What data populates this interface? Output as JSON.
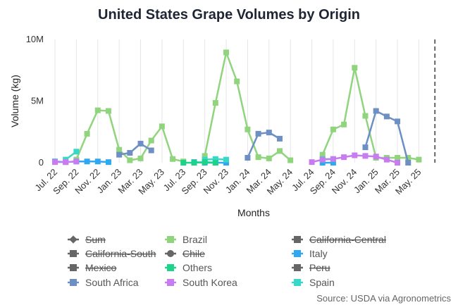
{
  "chart_data": {
    "type": "line",
    "title": "United States Grape Volumes by Origin",
    "xlabel": "Months",
    "ylabel": "Volume (kg)",
    "ylim": [
      0,
      10000000
    ],
    "y_ticks": [
      {
        "value": 0,
        "label": "0"
      },
      {
        "value": 5000000,
        "label": "5M"
      },
      {
        "value": 10000000,
        "label": "10M"
      }
    ],
    "x_range": [
      0,
      37
    ],
    "x_ticks": [
      {
        "x": 0,
        "label": "Jul. 22"
      },
      {
        "x": 2,
        "label": "Sep. 22"
      },
      {
        "x": 4,
        "label": "Nov. 22"
      },
      {
        "x": 6,
        "label": "Jan. 23"
      },
      {
        "x": 8,
        "label": "Mar. 23"
      },
      {
        "x": 10,
        "label": "May. 23"
      },
      {
        "x": 12,
        "label": "Jul. 23"
      },
      {
        "x": 14,
        "label": "Sep. 23"
      },
      {
        "x": 16,
        "label": "Nov. 23"
      },
      {
        "x": 18,
        "label": "Jan. 24"
      },
      {
        "x": 20,
        "label": "Mar. 24"
      },
      {
        "x": 22,
        "label": "May. 24"
      },
      {
        "x": 24,
        "label": "Jul. 24"
      },
      {
        "x": 26,
        "label": "Sep. 24"
      },
      {
        "x": 28,
        "label": "Nov. 24"
      },
      {
        "x": 30,
        "label": "Jan. 25"
      },
      {
        "x": 32,
        "label": "Mar. 25"
      },
      {
        "x": 34,
        "label": "May. 25"
      }
    ],
    "grid": "vertical",
    "legend_position": "bottom",
    "series": [
      {
        "name": "Brazil",
        "color": "#90d47e",
        "visible": true,
        "points": [
          [
            2,
            250000
          ],
          [
            3,
            2350000
          ],
          [
            4,
            4250000
          ],
          [
            5,
            4200000
          ],
          [
            6,
            1050000
          ],
          [
            7,
            200000
          ],
          [
            8,
            350000
          ],
          [
            9,
            1800000
          ],
          [
            10,
            2950000
          ],
          [
            11,
            300000
          ],
          [
            12,
            100000
          ],
          null,
          [
            14,
            550000
          ],
          [
            15,
            4850000
          ],
          [
            16,
            8950000
          ],
          [
            17,
            6600000
          ],
          [
            18,
            2700000
          ],
          [
            19,
            450000
          ],
          [
            20,
            350000
          ],
          [
            21,
            950000
          ],
          [
            22,
            200000
          ],
          null,
          [
            25,
            650000
          ],
          [
            26,
            2700000
          ],
          [
            27,
            3100000
          ],
          [
            28,
            7700000
          ],
          [
            29,
            3800000
          ],
          [
            30,
            400000
          ],
          [
            31,
            400000
          ],
          [
            32,
            400000
          ],
          [
            33,
            400000
          ],
          [
            34,
            250000
          ]
        ]
      },
      {
        "name": "South Africa",
        "color": "#6d8fc4",
        "visible": true,
        "points": [
          [
            6,
            650000
          ],
          [
            7,
            800000
          ],
          [
            8,
            1550000
          ],
          [
            9,
            1000000
          ],
          null,
          [
            18,
            400000
          ],
          [
            19,
            2350000
          ],
          [
            20,
            2450000
          ],
          [
            21,
            1950000
          ],
          null,
          [
            29,
            1250000
          ],
          [
            30,
            4200000
          ],
          [
            31,
            3750000
          ],
          [
            32,
            3350000
          ],
          [
            33,
            0
          ]
        ]
      },
      {
        "name": "Italy",
        "color": "#2ea8f0",
        "visible": true,
        "points": [
          [
            0,
            100000
          ],
          [
            1,
            50000
          ],
          [
            2,
            100000
          ],
          [
            3,
            100000
          ],
          [
            4,
            100000
          ],
          [
            5,
            50000
          ],
          null,
          [
            13,
            50000
          ],
          [
            14,
            0
          ],
          [
            15,
            0
          ],
          [
            16,
            0
          ],
          null,
          [
            25,
            0
          ],
          [
            26,
            0
          ]
        ]
      },
      {
        "name": "Spain",
        "color": "#38d8c8",
        "visible": true,
        "points": [
          [
            1,
            250000
          ],
          [
            2,
            900000
          ],
          null,
          [
            14,
            250000
          ],
          [
            15,
            300000
          ],
          [
            16,
            250000
          ],
          null,
          [
            25,
            300000
          ],
          [
            26,
            300000
          ]
        ]
      },
      {
        "name": "South Korea",
        "color": "#c77cf0",
        "visible": true,
        "points": [
          [
            0,
            50000
          ],
          [
            1,
            50000
          ],
          [
            2,
            100000
          ],
          null,
          [
            24,
            50000
          ],
          [
            25,
            250000
          ],
          [
            26,
            300000
          ],
          [
            27,
            450000
          ],
          [
            28,
            600000
          ],
          [
            29,
            550000
          ],
          [
            30,
            500000
          ],
          [
            31,
            250000
          ],
          [
            32,
            0
          ]
        ]
      },
      {
        "name": "Others",
        "color": "#1bd48a",
        "visible": true,
        "points": [
          [
            12,
            0
          ],
          [
            13,
            0
          ],
          [
            14,
            50000
          ],
          [
            15,
            0
          ]
        ]
      }
    ],
    "marker": {
      "x": 35.5
    },
    "legend": [
      {
        "name": "Sum",
        "color": "#666666",
        "visible": false,
        "marker": "diamond"
      },
      {
        "name": "Brazil",
        "color": "#90d47e",
        "visible": true,
        "marker": "square"
      },
      {
        "name": "California-Central",
        "color": "#666666",
        "visible": false,
        "marker": "square"
      },
      {
        "name": "California-South",
        "color": "#666666",
        "visible": false,
        "marker": "square"
      },
      {
        "name": "Chile",
        "color": "#666666",
        "visible": false,
        "marker": "circle"
      },
      {
        "name": "Italy",
        "color": "#2ea8f0",
        "visible": true,
        "marker": "square"
      },
      {
        "name": "Mexico",
        "color": "#666666",
        "visible": false,
        "marker": "square"
      },
      {
        "name": "Others",
        "color": "#1bd48a",
        "visible": true,
        "marker": "square"
      },
      {
        "name": "Peru",
        "color": "#666666",
        "visible": false,
        "marker": "square"
      },
      {
        "name": "South Africa",
        "color": "#6d8fc4",
        "visible": true,
        "marker": "square"
      },
      {
        "name": "South Korea",
        "color": "#c77cf0",
        "visible": true,
        "marker": "square"
      },
      {
        "name": "Spain",
        "color": "#38d8c8",
        "visible": true,
        "marker": "square"
      }
    ],
    "source": "Source: USDA via Agronometrics"
  }
}
